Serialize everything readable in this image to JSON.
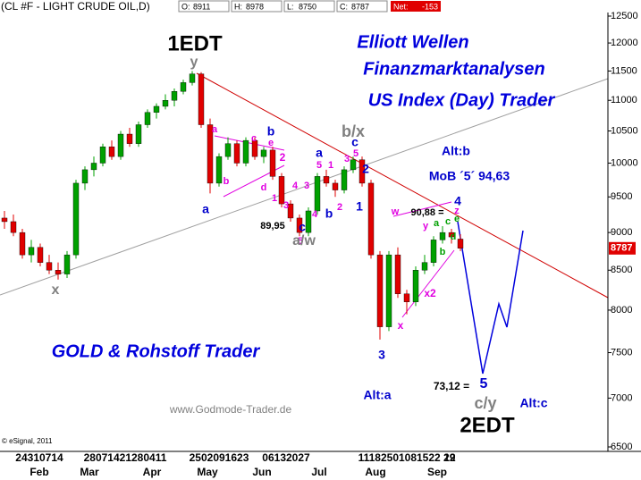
{
  "header": {
    "symbol": "(CL #F - LIGHT CRUDE OIL,D)",
    "fields": [
      "O:",
      "H:",
      "L:",
      "C:"
    ],
    "net_label": "Net:",
    "net": -153
  },
  "chart_data": {
    "type": "candlestick",
    "log_scale": true,
    "ylim": [
      6500,
      12500
    ],
    "yticks": [
      6500,
      7000,
      7500,
      8000,
      8500,
      9000,
      9500,
      10000,
      10500,
      11000,
      11500,
      12000,
      12500
    ],
    "up_color": "#00a000",
    "down_color": "#e00000",
    "open": [
      9200,
      9150,
      9000,
      8700,
      8800,
      8600,
      8500,
      8450,
      8700,
      9700,
      9900,
      10000,
      10250,
      10100,
      10450,
      10300,
      10600,
      10800,
      10900,
      11000,
      11150,
      11300,
      11450,
      10600,
      9700,
      10100,
      10300,
      10000,
      10350,
      10100,
      10200,
      9800,
      9400,
      9200,
      9000,
      9300,
      9800,
      9700,
      9600,
      9900,
      10050,
      9700,
      8700,
      7800,
      8700,
      8200,
      8100,
      8500,
      8600,
      8900,
      9000,
      8911
    ],
    "high": [
      9300,
      9250,
      9050,
      8900,
      8850,
      8700,
      8600,
      8750,
      9750,
      9950,
      10100,
      10300,
      10350,
      10500,
      10550,
      10650,
      10850,
      10950,
      11100,
      11200,
      11350,
      11500,
      11480,
      10700,
      10150,
      10400,
      10350,
      10400,
      10400,
      10250,
      10250,
      9850,
      9450,
      9250,
      9350,
      9850,
      9900,
      9750,
      9950,
      10100,
      10100,
      9750,
      8750,
      8750,
      8800,
      8250,
      8550,
      8700,
      8950,
      9088,
      9050,
      8978
    ],
    "low": [
      9050,
      8950,
      8650,
      8600,
      8550,
      8450,
      8380,
      8400,
      8650,
      9600,
      9800,
      9950,
      10050,
      10050,
      10250,
      10250,
      10550,
      10700,
      10850,
      10900,
      11100,
      11250,
      10550,
      9550,
      9650,
      10050,
      9950,
      9950,
      10050,
      10000,
      9750,
      9350,
      9150,
      8950,
      8950,
      9250,
      9650,
      9500,
      9550,
      9850,
      9650,
      8650,
      7650,
      7750,
      8150,
      7950,
      8050,
      8450,
      8550,
      8850,
      8850,
      8750
    ],
    "close": [
      9150,
      9000,
      8700,
      8800,
      8600,
      8500,
      8450,
      8700,
      9700,
      9900,
      10000,
      10250,
      10100,
      10450,
      10300,
      10600,
      10800,
      10900,
      11000,
      11150,
      11300,
      11450,
      10600,
      9700,
      10100,
      10300,
      10000,
      10350,
      10100,
      10200,
      9800,
      9400,
      9200,
      9000,
      9300,
      9800,
      9700,
      9600,
      9900,
      10050,
      9700,
      8700,
      7800,
      8700,
      8200,
      8100,
      8500,
      8600,
      8900,
      9000,
      8940,
      8787
    ],
    "day_labels": [
      "24310714",
      "28071421280411",
      "2502091623",
      "06132027",
      "11182501081522 29",
      "12"
    ],
    "months": [
      "Feb",
      "Mar",
      "Apr",
      "May",
      "Jun",
      "Jul",
      "Aug",
      "Sep"
    ],
    "titles": [
      "Elliott Wellen",
      "Finanzmarktanalysen",
      "US Index (Day) Trader",
      "GOLD & Rohstoff Trader"
    ],
    "website": "www.Godmode-Trader.de",
    "copyright": "© eSignal, 2011",
    "annotations": [
      {
        "text": "1EDT",
        "color": "#000000"
      },
      {
        "text": "y",
        "color": "#808080"
      },
      {
        "text": "x",
        "color": "#808080"
      },
      {
        "text": "a",
        "color": "#e000e0"
      },
      {
        "text": "b",
        "color": "#0000cc"
      },
      {
        "text": "c",
        "color": "#e000e0"
      },
      {
        "text": "e",
        "color": "#e000e0"
      },
      {
        "text": "2",
        "color": "#e000e0"
      },
      {
        "text": "d",
        "color": "#e000e0"
      },
      {
        "text": "1",
        "color": "#e000e0"
      },
      {
        "text": "a",
        "color": "#0000cc"
      },
      {
        "text": "b",
        "color": "#e000e0"
      },
      {
        "text": "3",
        "color": "#e000e0"
      },
      {
        "text": "4",
        "color": "#e000e0"
      },
      {
        "text": "3",
        "color": "#e000e0"
      },
      {
        "text": "4",
        "color": "#e000e0"
      },
      {
        "text": "5",
        "color": "#e000e0"
      },
      {
        "text": "89,95",
        "color": "#000000"
      },
      {
        "text": "c",
        "color": "#0000cc"
      },
      {
        "text": "a/w",
        "color": "#808080"
      },
      {
        "text": "b/x",
        "color": "#808080"
      },
      {
        "text": "c",
        "color": "#0000cc"
      },
      {
        "text": "a",
        "color": "#0000cc"
      },
      {
        "text": "5",
        "color": "#e000e0"
      },
      {
        "text": "1",
        "color": "#e000e0"
      },
      {
        "text": "3",
        "color": "#e000e0"
      },
      {
        "text": "5",
        "color": "#e000e0"
      },
      {
        "text": "2",
        "color": "#0000cc"
      },
      {
        "text": "1",
        "color": "#0000cc"
      },
      {
        "text": "b",
        "color": "#0000cc"
      },
      {
        "text": "2",
        "color": "#e000e0"
      },
      {
        "text": "3",
        "color": "#0000cc"
      },
      {
        "text": "Alt:b",
        "color": "#0000cc"
      },
      {
        "text": "MoB ´5´ 94,63",
        "color": "#0000cc"
      },
      {
        "text": "4",
        "color": "#0000cc"
      },
      {
        "text": "90,88 =",
        "color": "#000000"
      },
      {
        "text": "z",
        "color": "#e000e0"
      },
      {
        "text": "y",
        "color": "#e000e0"
      },
      {
        "text": "a",
        "color": "#00a000"
      },
      {
        "text": "c",
        "color": "#00a000"
      },
      {
        "text": "e",
        "color": "#00a000"
      },
      {
        "text": "w",
        "color": "#e000e0"
      },
      {
        "text": "d",
        "color": "#00a000"
      },
      {
        "text": "b",
        "color": "#00a000"
      },
      {
        "text": "x2",
        "color": "#e000e0"
      },
      {
        "text": "x",
        "color": "#e000e0"
      },
      {
        "text": "73,12 =",
        "color": "#000000"
      },
      {
        "text": "5",
        "color": "#0000cc"
      },
      {
        "text": "c/y",
        "color": "#808080"
      },
      {
        "text": "Alt:a",
        "color": "#0000cc"
      },
      {
        "text": "Alt:c",
        "color": "#0000cc"
      },
      {
        "text": "2EDT",
        "color": "#000000"
      }
    ]
  }
}
